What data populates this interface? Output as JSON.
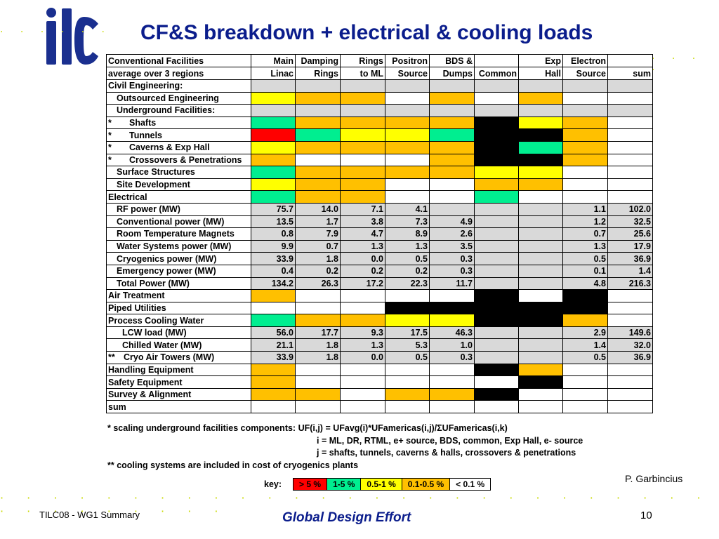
{
  "logo": {
    "text": "ilc"
  },
  "title": "CF&S breakdown + electrical & cooling loads",
  "header": {
    "row1": [
      "Conventional Facilities",
      "Main",
      "Damping",
      "Rings",
      "Positron",
      "BDS &",
      "",
      "Exp",
      "Electron",
      ""
    ],
    "row2": [
      "average over 3 regions",
      "Linac",
      "Rings",
      "to ML",
      "Source",
      "Dumps",
      "Common",
      "Hall",
      "Source",
      "sum"
    ]
  },
  "rows": [
    {
      "label": "Civil Engineering:",
      "indent": 0,
      "cells": [
        [
          "g",
          ""
        ],
        [
          "g",
          ""
        ],
        [
          "g",
          ""
        ],
        [
          "g",
          ""
        ],
        [
          "g",
          ""
        ],
        [
          "g",
          ""
        ],
        [
          "g",
          ""
        ],
        [
          "g",
          ""
        ],
        [
          "g",
          ""
        ]
      ]
    },
    {
      "label": "Outsourced Engineering",
      "indent": 1,
      "cells": [
        [
          "y",
          ""
        ],
        [
          "o",
          ""
        ],
        [
          "o",
          ""
        ],
        [
          "w",
          ""
        ],
        [
          "o",
          ""
        ],
        [
          "w",
          ""
        ],
        [
          "o",
          ""
        ],
        [
          "w",
          ""
        ],
        [
          "w",
          ""
        ]
      ]
    },
    {
      "label": "Underground Facilities:",
      "indent": 1,
      "cells": [
        [
          "g",
          ""
        ],
        [
          "g",
          ""
        ],
        [
          "g",
          ""
        ],
        [
          "g",
          ""
        ],
        [
          "g",
          ""
        ],
        [
          "g",
          ""
        ],
        [
          "g",
          ""
        ],
        [
          "g",
          ""
        ],
        [
          "g",
          ""
        ]
      ]
    },
    {
      "label": "Shafts",
      "star": "*",
      "indent": 2,
      "cells": [
        [
          "n",
          ""
        ],
        [
          "o",
          ""
        ],
        [
          "o",
          ""
        ],
        [
          "o",
          ""
        ],
        [
          "o",
          ""
        ],
        [
          "b",
          ""
        ],
        [
          "y",
          ""
        ],
        [
          "o",
          ""
        ],
        [
          "w",
          ""
        ]
      ]
    },
    {
      "label": "Tunnels",
      "star": "*",
      "indent": 2,
      "cells": [
        [
          "r",
          ""
        ],
        [
          "n",
          ""
        ],
        [
          "y",
          ""
        ],
        [
          "y",
          ""
        ],
        [
          "n",
          ""
        ],
        [
          "b",
          ""
        ],
        [
          "b",
          ""
        ],
        [
          "o",
          ""
        ],
        [
          "w",
          ""
        ]
      ]
    },
    {
      "label": "Caverns & Exp Hall",
      "star": "*",
      "indent": 2,
      "cells": [
        [
          "y",
          ""
        ],
        [
          "o",
          ""
        ],
        [
          "o",
          ""
        ],
        [
          "o",
          ""
        ],
        [
          "o",
          ""
        ],
        [
          "b",
          ""
        ],
        [
          "n",
          ""
        ],
        [
          "o",
          ""
        ],
        [
          "w",
          ""
        ]
      ]
    },
    {
      "label": "Crossovers & Penetrations",
      "star": "*",
      "indent": 2,
      "cells": [
        [
          "o",
          ""
        ],
        [
          "w",
          ""
        ],
        [
          "w",
          ""
        ],
        [
          "w",
          ""
        ],
        [
          "o",
          ""
        ],
        [
          "b",
          ""
        ],
        [
          "b",
          ""
        ],
        [
          "o",
          ""
        ],
        [
          "w",
          ""
        ]
      ]
    },
    {
      "label": "Surface Structures",
      "indent": 1,
      "cells": [
        [
          "n",
          ""
        ],
        [
          "o",
          ""
        ],
        [
          "o",
          ""
        ],
        [
          "o",
          ""
        ],
        [
          "o",
          ""
        ],
        [
          "y",
          ""
        ],
        [
          "y",
          ""
        ],
        [
          "w",
          ""
        ],
        [
          "w",
          ""
        ]
      ]
    },
    {
      "label": "Site Development",
      "indent": 1,
      "cells": [
        [
          "y",
          ""
        ],
        [
          "o",
          ""
        ],
        [
          "o",
          ""
        ],
        [
          "w",
          ""
        ],
        [
          "w",
          ""
        ],
        [
          "o",
          ""
        ],
        [
          "o",
          ""
        ],
        [
          "w",
          ""
        ],
        [
          "w",
          ""
        ]
      ]
    },
    {
      "label": "Electrical",
      "indent": 0,
      "cells": [
        [
          "n",
          ""
        ],
        [
          "o",
          ""
        ],
        [
          "o",
          ""
        ],
        [
          "w",
          ""
        ],
        [
          "w",
          ""
        ],
        [
          "n",
          ""
        ],
        [
          "w",
          ""
        ],
        [
          "w",
          ""
        ],
        [
          "w",
          ""
        ]
      ]
    },
    {
      "label": "RF power (MW)",
      "indent": 1,
      "cells": [
        [
          "g",
          "75.7"
        ],
        [
          "g",
          "14.0"
        ],
        [
          "g",
          "7.1"
        ],
        [
          "g",
          "4.1"
        ],
        [
          "g",
          ""
        ],
        [
          "g",
          ""
        ],
        [
          "g",
          ""
        ],
        [
          "g",
          "1.1"
        ],
        [
          "g",
          "102.0"
        ]
      ]
    },
    {
      "label": "Conventional power (MW)",
      "indent": 1,
      "cells": [
        [
          "g",
          "13.5"
        ],
        [
          "g",
          "1.7"
        ],
        [
          "g",
          "3.8"
        ],
        [
          "g",
          "7.3"
        ],
        [
          "g",
          "4.9"
        ],
        [
          "g",
          ""
        ],
        [
          "g",
          ""
        ],
        [
          "g",
          "1.2"
        ],
        [
          "g",
          "32.5"
        ]
      ]
    },
    {
      "label": "Room Temperature Magnets",
      "indent": 1,
      "cells": [
        [
          "g",
          "0.8"
        ],
        [
          "g",
          "7.9"
        ],
        [
          "g",
          "4.7"
        ],
        [
          "g",
          "8.9"
        ],
        [
          "g",
          "2.6"
        ],
        [
          "g",
          ""
        ],
        [
          "g",
          ""
        ],
        [
          "g",
          "0.7"
        ],
        [
          "g",
          "25.6"
        ]
      ]
    },
    {
      "label": "Water Systems power (MW)",
      "indent": 1,
      "cells": [
        [
          "g",
          "9.9"
        ],
        [
          "g",
          "0.7"
        ],
        [
          "g",
          "1.3"
        ],
        [
          "g",
          "1.3"
        ],
        [
          "g",
          "3.5"
        ],
        [
          "g",
          ""
        ],
        [
          "g",
          ""
        ],
        [
          "g",
          "1.3"
        ],
        [
          "g",
          "17.9"
        ]
      ]
    },
    {
      "label": "Cryogenics power (MW)",
      "indent": 1,
      "cells": [
        [
          "g",
          "33.9"
        ],
        [
          "g",
          "1.8"
        ],
        [
          "g",
          "0.0"
        ],
        [
          "g",
          "0.5"
        ],
        [
          "g",
          "0.3"
        ],
        [
          "g",
          ""
        ],
        [
          "g",
          ""
        ],
        [
          "g",
          "0.5"
        ],
        [
          "g",
          "36.9"
        ]
      ]
    },
    {
      "label": "Emergency power (MW)",
      "indent": 1,
      "cells": [
        [
          "g",
          "0.4"
        ],
        [
          "g",
          "0.2"
        ],
        [
          "g",
          "0.2"
        ],
        [
          "g",
          "0.2"
        ],
        [
          "g",
          "0.3"
        ],
        [
          "g",
          ""
        ],
        [
          "g",
          ""
        ],
        [
          "g",
          "0.1"
        ],
        [
          "g",
          "1.4"
        ]
      ]
    },
    {
      "label": "Total Power (MW)",
      "indent": 1,
      "cells": [
        [
          "g",
          "134.2"
        ],
        [
          "g",
          "26.3"
        ],
        [
          "g",
          "17.2"
        ],
        [
          "g",
          "22.3"
        ],
        [
          "g",
          "11.7"
        ],
        [
          "g",
          ""
        ],
        [
          "g",
          ""
        ],
        [
          "g",
          "4.8"
        ],
        [
          "g",
          "216.3"
        ]
      ]
    },
    {
      "label": "Air Treatment",
      "indent": 0,
      "cells": [
        [
          "o",
          ""
        ],
        [
          "w",
          ""
        ],
        [
          "w",
          ""
        ],
        [
          "w",
          ""
        ],
        [
          "w",
          ""
        ],
        [
          "b",
          ""
        ],
        [
          "w",
          ""
        ],
        [
          "b",
          ""
        ],
        [
          "w",
          ""
        ]
      ]
    },
    {
      "label": "Piped Utilities",
      "indent": 0,
      "cells": [
        [
          "w",
          ""
        ],
        [
          "w",
          ""
        ],
        [
          "w",
          ""
        ],
        [
          "b",
          ""
        ],
        [
          "b",
          ""
        ],
        [
          "b",
          ""
        ],
        [
          "b",
          ""
        ],
        [
          "b",
          ""
        ],
        [
          "w",
          ""
        ]
      ]
    },
    {
      "label": "Process Cooling Water",
      "indent": 0,
      "cells": [
        [
          "n",
          ""
        ],
        [
          "o",
          ""
        ],
        [
          "o",
          ""
        ],
        [
          "y",
          ""
        ],
        [
          "y",
          ""
        ],
        [
          "b",
          ""
        ],
        [
          "b",
          ""
        ],
        [
          "o",
          ""
        ],
        [
          "w",
          ""
        ]
      ]
    },
    {
      "label": "LCW load (MW)",
      "indent": 2,
      "cells": [
        [
          "g",
          "56.0"
        ],
        [
          "g",
          "17.7"
        ],
        [
          "g",
          "9.3"
        ],
        [
          "g",
          "17.5"
        ],
        [
          "g",
          "46.3"
        ],
        [
          "g",
          ""
        ],
        [
          "g",
          ""
        ],
        [
          "g",
          "2.9"
        ],
        [
          "g",
          "149.6"
        ]
      ]
    },
    {
      "label": "Chilled Water (MW)",
      "indent": 2,
      "cells": [
        [
          "g",
          "21.1"
        ],
        [
          "g",
          "1.8"
        ],
        [
          "g",
          "1.3"
        ],
        [
          "g",
          "5.3"
        ],
        [
          "g",
          "1.0"
        ],
        [
          "g",
          ""
        ],
        [
          "g",
          ""
        ],
        [
          "g",
          "1.4"
        ],
        [
          "g",
          "32.0"
        ]
      ]
    },
    {
      "label": "Cryo Air Towers (MW)",
      "star": "**",
      "indent": 0,
      "cells": [
        [
          "g",
          "33.9"
        ],
        [
          "g",
          "1.8"
        ],
        [
          "g",
          "0.0"
        ],
        [
          "g",
          "0.5"
        ],
        [
          "g",
          "0.3"
        ],
        [
          "g",
          ""
        ],
        [
          "g",
          ""
        ],
        [
          "g",
          "0.5"
        ],
        [
          "g",
          "36.9"
        ]
      ]
    },
    {
      "label": "Handling Equipment",
      "indent": 0,
      "cells": [
        [
          "o",
          ""
        ],
        [
          "w",
          ""
        ],
        [
          "w",
          ""
        ],
        [
          "w",
          ""
        ],
        [
          "w",
          ""
        ],
        [
          "b",
          ""
        ],
        [
          "o",
          ""
        ],
        [
          "w",
          ""
        ],
        [
          "w",
          ""
        ]
      ]
    },
    {
      "label": "Safety Equipment",
      "indent": 0,
      "cells": [
        [
          "o",
          ""
        ],
        [
          "w",
          ""
        ],
        [
          "w",
          ""
        ],
        [
          "w",
          ""
        ],
        [
          "w",
          ""
        ],
        [
          "w",
          ""
        ],
        [
          "b",
          ""
        ],
        [
          "w",
          ""
        ],
        [
          "w",
          ""
        ]
      ]
    },
    {
      "label": "Survey & Alignment",
      "indent": 0,
      "cells": [
        [
          "o",
          ""
        ],
        [
          "o",
          ""
        ],
        [
          "w",
          ""
        ],
        [
          "o",
          ""
        ],
        [
          "o",
          ""
        ],
        [
          "b",
          ""
        ],
        [
          "w",
          ""
        ],
        [
          "w",
          ""
        ],
        [
          "w",
          ""
        ]
      ]
    },
    {
      "label": "sum",
      "indent": 0,
      "cells": [
        [
          "w",
          ""
        ],
        [
          "w",
          ""
        ],
        [
          "w",
          ""
        ],
        [
          "w",
          ""
        ],
        [
          "w",
          ""
        ],
        [
          "w",
          ""
        ],
        [
          "w",
          ""
        ],
        [
          "w",
          ""
        ],
        [
          "w",
          ""
        ]
      ]
    }
  ],
  "notes": {
    "line1": "* scaling underground facilities components:  UF(i,j) = UFavg(i)*UFamericas(i,j)/ΣUFamericas(i,k)",
    "line2": "i = ML, DR, RTML, e+ source, BDS, common, Exp Hall, e- source",
    "line3": "j = shafts, tunnels, caverns & halls, crossovers & penetrations",
    "line4": "** cooling systems are included in cost of cryogenics plants"
  },
  "key": {
    "label": "key:",
    "items": [
      {
        "text": "> 5 %",
        "color": "#ff0000"
      },
      {
        "text": "1-5 %",
        "color": "#00ee90"
      },
      {
        "text": "0.5-1 %",
        "color": "#ffff00"
      },
      {
        "text": "0.1-0.5 %",
        "color": "#ffc000"
      },
      {
        "text": "< 0.1 %",
        "color": "#ffffff"
      }
    ]
  },
  "author": "P. Garbincius",
  "footer": {
    "left": "TILC08 - WG1 Summary",
    "center": "Global Design Effort",
    "page": "10"
  },
  "colors": {
    "title": "#0b1d8c",
    "accent_dots": "#c8da00",
    "logo": "#1a2f8f"
  }
}
